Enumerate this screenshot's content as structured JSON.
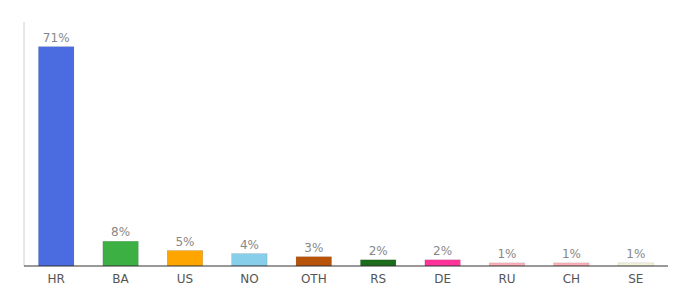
{
  "chart_data": {
    "type": "bar",
    "categories": [
      "HR",
      "BA",
      "US",
      "NO",
      "OTH",
      "RS",
      "DE",
      "RU",
      "CH",
      "SE"
    ],
    "values": [
      71,
      8,
      5,
      4,
      3,
      2,
      2,
      1,
      1,
      1
    ],
    "value_labels": [
      "71%",
      "8%",
      "5%",
      "4%",
      "3%",
      "2%",
      "2%",
      "1%",
      "1%",
      "1%"
    ],
    "colors": [
      "#4B6BE0",
      "#3CB043",
      "#FFA500",
      "#87CEEB",
      "#B8530A",
      "#1A6B1A",
      "#FF3399",
      "#FFB0B8",
      "#FFB0B8",
      "#F5F5DC"
    ],
    "ylim": [
      0,
      79
    ],
    "data_labels": true,
    "tick_labels": "x"
  }
}
